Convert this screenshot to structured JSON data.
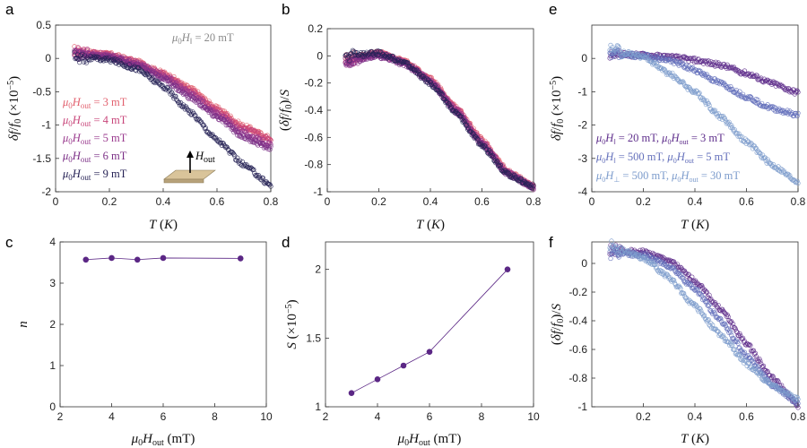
{
  "colors": {
    "h3": "#e2606e",
    "h4": "#c8457a",
    "h5": "#9a3a8e",
    "h6": "#7b2f86",
    "h9": "#262255",
    "dot": "#5b2785",
    "e1": "#5f2f8c",
    "e2": "#6470bb",
    "e3": "#7d9ccc"
  },
  "chart_data": [
    {
      "id": "a",
      "panel_label": "a",
      "type": "scatter",
      "xlabel": "T (K)",
      "ylabel": "δf/f0 (×10^-5)",
      "xlim": [
        0,
        0.8
      ],
      "ylim": [
        -2,
        0.5
      ],
      "xticks": [
        "0",
        "0.2",
        "0.4",
        "0.6",
        "0.8"
      ],
      "yticks": [
        "0.5",
        "0",
        "-0.5",
        "-1",
        "-1.5",
        "-2"
      ],
      "annotation": "μ0H‖ = 20 mT",
      "inset_label": "Hout",
      "series": [
        {
          "name": "μ0Hout = 3 mT",
          "color_key": "h3",
          "x": [
            0.07,
            0.2,
            0.3,
            0.4,
            0.5,
            0.6,
            0.7,
            0.8
          ],
          "y": [
            0.1,
            0.06,
            -0.05,
            -0.22,
            -0.45,
            -0.75,
            -1.02,
            -1.2
          ]
        },
        {
          "name": "μ0Hout = 4 mT",
          "color_key": "h4",
          "x": [
            0.07,
            0.2,
            0.3,
            0.4,
            0.5,
            0.6,
            0.7,
            0.8
          ],
          "y": [
            0.1,
            0.05,
            -0.06,
            -0.24,
            -0.48,
            -0.78,
            -1.05,
            -1.22
          ]
        },
        {
          "name": "μ0Hout = 5 mT",
          "color_key": "h5",
          "x": [
            0.07,
            0.2,
            0.3,
            0.4,
            0.5,
            0.6,
            0.7,
            0.8
          ],
          "y": [
            0.08,
            0.04,
            -0.07,
            -0.26,
            -0.52,
            -0.83,
            -1.12,
            -1.3
          ]
        },
        {
          "name": "μ0Hout = 6 mT",
          "color_key": "h6",
          "x": [
            0.07,
            0.2,
            0.3,
            0.4,
            0.5,
            0.6,
            0.7,
            0.8
          ],
          "y": [
            0.05,
            0.02,
            -0.09,
            -0.3,
            -0.58,
            -0.88,
            -1.18,
            -1.35
          ]
        },
        {
          "name": "μ0Hout = 9 mT",
          "color_key": "h9",
          "x": [
            0.07,
            0.2,
            0.3,
            0.4,
            0.5,
            0.6,
            0.7,
            0.8
          ],
          "y": [
            0.02,
            -0.02,
            -0.15,
            -0.42,
            -0.8,
            -1.22,
            -1.6,
            -1.9
          ]
        }
      ]
    },
    {
      "id": "b",
      "panel_label": "b",
      "type": "scatter",
      "xlabel": "T (K)",
      "ylabel": "(δf/f0)/S",
      "xlim": [
        0,
        0.8
      ],
      "ylim": [
        -1,
        0.2
      ],
      "xticks": [
        "0",
        "0.2",
        "0.4",
        "0.6",
        "0.8"
      ],
      "yticks": [
        "0.2",
        "0",
        "-0.2",
        "-0.4",
        "-0.6",
        "-0.8",
        "-1"
      ],
      "series": [
        {
          "name": "3 mT",
          "color_key": "h3",
          "x": [
            0.07,
            0.2,
            0.3,
            0.4,
            0.5,
            0.6,
            0.7,
            0.8
          ],
          "y": [
            -0.02,
            0.02,
            -0.04,
            -0.17,
            -0.38,
            -0.62,
            -0.85,
            -0.96
          ]
        },
        {
          "name": "4 mT",
          "color_key": "h4",
          "x": [
            0.07,
            0.2,
            0.3,
            0.4,
            0.5,
            0.6,
            0.7,
            0.8
          ],
          "y": [
            -0.03,
            0.02,
            -0.05,
            -0.18,
            -0.39,
            -0.63,
            -0.86,
            -0.96
          ]
        },
        {
          "name": "5 mT",
          "color_key": "h5",
          "x": [
            0.07,
            0.2,
            0.3,
            0.4,
            0.5,
            0.6,
            0.7,
            0.8
          ],
          "y": [
            -0.04,
            0.01,
            -0.05,
            -0.18,
            -0.4,
            -0.64,
            -0.86,
            -0.97
          ]
        },
        {
          "name": "6 mT",
          "color_key": "h6",
          "x": [
            0.07,
            0.2,
            0.3,
            0.4,
            0.5,
            0.6,
            0.7,
            0.8
          ],
          "y": [
            -0.05,
            0.0,
            -0.06,
            -0.19,
            -0.41,
            -0.65,
            -0.87,
            -0.97
          ]
        },
        {
          "name": "9 mT",
          "color_key": "h9",
          "x": [
            0.07,
            0.2,
            0.3,
            0.4,
            0.5,
            0.6,
            0.7,
            0.8
          ],
          "y": [
            0.0,
            0.02,
            -0.05,
            -0.2,
            -0.42,
            -0.66,
            -0.87,
            -0.96
          ]
        }
      ]
    },
    {
      "id": "c",
      "panel_label": "c",
      "type": "line",
      "xlabel": "μ0Hout (mT)",
      "ylabel": "n",
      "xlim": [
        2,
        10
      ],
      "ylim": [
        0,
        4
      ],
      "xticks": [
        "2",
        "4",
        "6",
        "8",
        "10"
      ],
      "yticks": [
        "4",
        "3",
        "2",
        "1",
        "0"
      ],
      "series": [
        {
          "name": "n",
          "color_key": "dot",
          "x": [
            3,
            4,
            5,
            6,
            9
          ],
          "y": [
            3.57,
            3.61,
            3.57,
            3.61,
            3.6
          ]
        }
      ]
    },
    {
      "id": "d",
      "panel_label": "d",
      "type": "line",
      "xlabel": "μ0Hout (mT)",
      "ylabel": "S (×10^-5)",
      "xlim": [
        2,
        10
      ],
      "ylim": [
        1,
        2.2
      ],
      "xticks": [
        "2",
        "4",
        "6",
        "8",
        "10"
      ],
      "yticks": [
        "2",
        "1.5",
        "1"
      ],
      "series": [
        {
          "name": "S",
          "color_key": "dot",
          "x": [
            3,
            4,
            5,
            6,
            9
          ],
          "y": [
            1.1,
            1.2,
            1.3,
            1.4,
            2.0
          ]
        }
      ]
    },
    {
      "id": "e",
      "panel_label": "e",
      "type": "scatter",
      "xlabel": "T (K)",
      "ylabel": "δf/f0 (×10^-5)",
      "xlim": [
        0,
        0.8
      ],
      "ylim": [
        -4,
        1
      ],
      "xticks": [
        "0",
        "0.2",
        "0.4",
        "0.6",
        "0.8"
      ],
      "yticks": [
        "0",
        "-1",
        "-2",
        "-3",
        "-4"
      ],
      "series": [
        {
          "name": "μ0H‖ = 20 mT, μ0Hout = 3 mT",
          "color_key": "e1",
          "x": [
            0.07,
            0.2,
            0.3,
            0.4,
            0.5,
            0.6,
            0.7,
            0.8
          ],
          "y": [
            0.12,
            0.1,
            0.05,
            -0.05,
            -0.2,
            -0.45,
            -0.75,
            -1.03
          ]
        },
        {
          "name": "μ0H‖ = 500 mT, μ0Hout = 5 mT",
          "color_key": "e2",
          "x": [
            0.07,
            0.2,
            0.3,
            0.4,
            0.5,
            0.6,
            0.7,
            0.8
          ],
          "y": [
            0.12,
            0.08,
            -0.05,
            -0.35,
            -0.75,
            -1.15,
            -1.5,
            -1.7
          ]
        },
        {
          "name": "μ0H⊥ = 500 mT, μ0Hout = 30 mT",
          "color_key": "e3",
          "x": [
            0.07,
            0.2,
            0.3,
            0.4,
            0.5,
            0.6,
            0.7,
            0.8
          ],
          "y": [
            0.3,
            0.05,
            -0.45,
            -1.0,
            -1.75,
            -2.5,
            -3.2,
            -3.7
          ]
        }
      ]
    },
    {
      "id": "f",
      "panel_label": "f",
      "type": "scatter",
      "xlabel": "T (K)",
      "ylabel": "(δf/f0)/S",
      "xlim": [
        0,
        0.8
      ],
      "ylim": [
        -1,
        0.15
      ],
      "xticks": [
        "0.2",
        "0.4",
        "0.6",
        "0.8"
      ],
      "yticks": [
        "0",
        "-0.2",
        "-0.4",
        "-0.6",
        "-0.8",
        "-1"
      ],
      "series": [
        {
          "name": "20 mT / 3 mT",
          "color_key": "e1",
          "x": [
            0.07,
            0.2,
            0.3,
            0.4,
            0.5,
            0.6,
            0.7,
            0.8
          ],
          "y": [
            0.09,
            0.08,
            0.02,
            -0.12,
            -0.32,
            -0.56,
            -0.8,
            -0.99
          ]
        },
        {
          "name": "500 mT / 5 mT",
          "color_key": "e2",
          "x": [
            0.07,
            0.2,
            0.3,
            0.4,
            0.5,
            0.6,
            0.7,
            0.8
          ],
          "y": [
            0.07,
            0.06,
            -0.02,
            -0.18,
            -0.4,
            -0.64,
            -0.85,
            -0.97
          ]
        },
        {
          "name": "500 mT / 30 mT",
          "color_key": "e3",
          "x": [
            0.07,
            0.2,
            0.3,
            0.4,
            0.5,
            0.6,
            0.7,
            0.8
          ],
          "y": [
            0.12,
            0.04,
            -0.1,
            -0.3,
            -0.5,
            -0.7,
            -0.85,
            -0.95
          ]
        }
      ]
    }
  ]
}
